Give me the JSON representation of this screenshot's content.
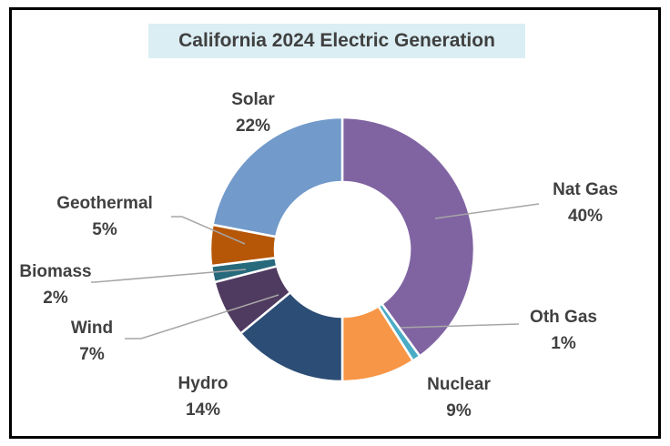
{
  "chart_data": {
    "type": "pie",
    "title": "California 2024 Electric Generation",
    "slices": [
      {
        "label": "Nat Gas",
        "pct_label": "40%",
        "value": 40,
        "color": "#8064a2"
      },
      {
        "label": "Oth Gas",
        "pct_label": "1%",
        "value": 1,
        "color": "#4bacc6"
      },
      {
        "label": "Nuclear",
        "pct_label": "9%",
        "value": 9,
        "color": "#f79646"
      },
      {
        "label": "Hydro",
        "pct_label": "14%",
        "value": 14,
        "color": "#2c4d75"
      },
      {
        "label": "Wind",
        "pct_label": "7%",
        "value": 7,
        "color": "#4f3a60"
      },
      {
        "label": "Biomass",
        "pct_label": "2%",
        "value": 2,
        "color": "#276a7c"
      },
      {
        "label": "Geothermal",
        "pct_label": "5%",
        "value": 5,
        "color": "#b65708"
      },
      {
        "label": "Solar",
        "pct_label": "22%",
        "value": 22,
        "color": "#729aca"
      }
    ],
    "legend": "none",
    "style": "donut"
  }
}
